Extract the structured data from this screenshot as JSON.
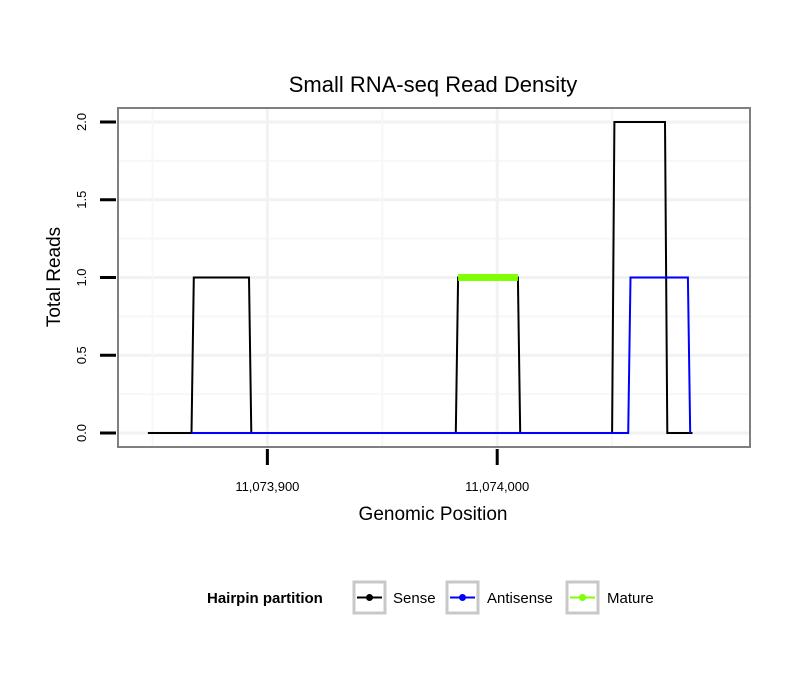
{
  "chart_data": {
    "type": "line",
    "title": "Small RNA-seq Read Density",
    "xlabel": "Genomic Position",
    "ylabel": "Total Reads",
    "xlim": [
      11073835,
      11074110
    ],
    "ylim": [
      -0.09,
      2.09
    ],
    "x_ticks": [
      11073900,
      11074000
    ],
    "x_tick_labels": [
      "11,073,900",
      "11,074,000"
    ],
    "y_ticks": [
      0,
      0.5,
      1,
      1.5,
      2
    ],
    "y_tick_labels": [
      "0.0",
      "0.5",
      "1.0",
      "1.5",
      "2.0"
    ],
    "grid": true,
    "legend": {
      "title": "Hairpin partition",
      "position": "bottom",
      "entries": [
        {
          "name": "Sense",
          "color": "#000000"
        },
        {
          "name": "Antisense",
          "color": "#0000ff"
        },
        {
          "name": "Mature",
          "color": "#7fff00"
        }
      ]
    },
    "series": [
      {
        "name": "Sense",
        "color": "#000000",
        "x": [
          11073848,
          11073867,
          11073868,
          11073892,
          11073893,
          11073982,
          11073983,
          11074009,
          11074010,
          11074050,
          11074051,
          11074073,
          11074074,
          11074085
        ],
        "y": [
          0,
          0,
          1,
          1,
          0,
          0,
          1,
          1,
          0,
          0,
          2,
          2,
          0,
          0
        ]
      },
      {
        "name": "Antisense",
        "color": "#0000ff",
        "x": [
          11073867,
          11074057,
          11074058,
          11074083,
          11074084
        ],
        "y": [
          0,
          0,
          1,
          1,
          0
        ]
      },
      {
        "name": "Mature",
        "color": "#7fff00",
        "x": [
          11073983,
          11074009
        ],
        "y": [
          1,
          1
        ]
      }
    ]
  }
}
